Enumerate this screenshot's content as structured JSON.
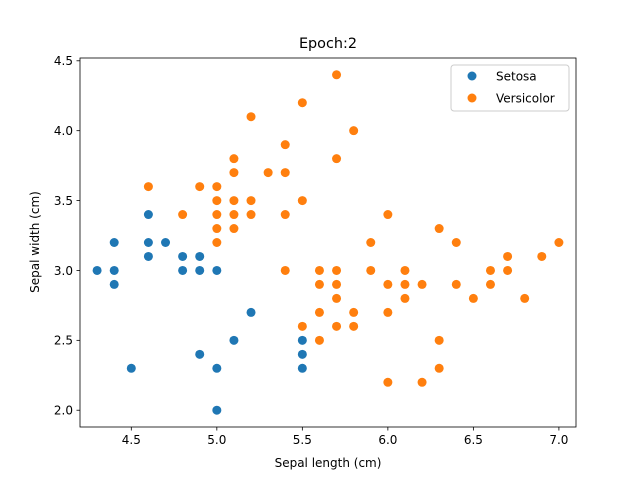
{
  "chart_data": {
    "type": "scatter",
    "title": "Epoch:2",
    "xlabel": "Sepal length (cm)",
    "ylabel": "Sepal width (cm)",
    "xlim": [
      4.2,
      7.1
    ],
    "ylim": [
      1.88,
      4.52
    ],
    "xticks": [
      4.5,
      5.0,
      5.5,
      6.0,
      6.5,
      7.0
    ],
    "xtick_labels": [
      "4.5",
      "5.0",
      "5.5",
      "6.0",
      "6.5",
      "7.0"
    ],
    "yticks": [
      2.0,
      2.5,
      3.0,
      3.5,
      4.0,
      4.5
    ],
    "ytick_labels": [
      "2.0",
      "2.5",
      "3.0",
      "3.5",
      "4.0",
      "4.5"
    ],
    "grid": false,
    "legend_position": "upper right",
    "series": [
      {
        "name": "Setosa",
        "color": "#1f77b4",
        "points": [
          [
            4.3,
            3.0
          ],
          [
            4.4,
            3.2
          ],
          [
            4.4,
            3.0
          ],
          [
            4.4,
            2.9
          ],
          [
            4.5,
            2.3
          ],
          [
            4.6,
            3.4
          ],
          [
            4.6,
            3.2
          ],
          [
            4.6,
            3.1
          ],
          [
            4.7,
            3.2
          ],
          [
            4.8,
            3.1
          ],
          [
            4.8,
            3.0
          ],
          [
            4.9,
            3.1
          ],
          [
            4.9,
            3.0
          ],
          [
            4.9,
            2.4
          ],
          [
            5.0,
            3.0
          ],
          [
            5.0,
            2.3
          ],
          [
            5.0,
            2.0
          ],
          [
            5.1,
            2.5
          ],
          [
            5.2,
            2.7
          ],
          [
            5.5,
            2.5
          ],
          [
            5.5,
            2.4
          ],
          [
            5.5,
            2.3
          ]
        ]
      },
      {
        "name": "Versicolor",
        "color": "#ff7f0e",
        "points": [
          [
            4.6,
            3.6
          ],
          [
            4.8,
            3.4
          ],
          [
            4.9,
            3.6
          ],
          [
            5.0,
            3.6
          ],
          [
            5.0,
            3.5
          ],
          [
            5.0,
            3.4
          ],
          [
            5.0,
            3.3
          ],
          [
            5.0,
            3.2
          ],
          [
            5.1,
            3.8
          ],
          [
            5.1,
            3.7
          ],
          [
            5.1,
            3.5
          ],
          [
            5.1,
            3.4
          ],
          [
            5.1,
            3.3
          ],
          [
            5.2,
            4.1
          ],
          [
            5.2,
            3.5
          ],
          [
            5.2,
            3.4
          ],
          [
            5.3,
            3.7
          ],
          [
            5.4,
            3.9
          ],
          [
            5.4,
            3.7
          ],
          [
            5.4,
            3.4
          ],
          [
            5.4,
            3.0
          ],
          [
            5.5,
            4.2
          ],
          [
            5.5,
            3.5
          ],
          [
            5.5,
            2.6
          ],
          [
            5.6,
            3.0
          ],
          [
            5.6,
            2.9
          ],
          [
            5.6,
            2.7
          ],
          [
            5.6,
            2.5
          ],
          [
            5.7,
            4.4
          ],
          [
            5.7,
            3.8
          ],
          [
            5.7,
            3.0
          ],
          [
            5.7,
            2.9
          ],
          [
            5.7,
            2.8
          ],
          [
            5.7,
            2.6
          ],
          [
            5.8,
            4.0
          ],
          [
            5.8,
            2.7
          ],
          [
            5.8,
            2.6
          ],
          [
            5.9,
            3.2
          ],
          [
            5.9,
            3.0
          ],
          [
            6.0,
            3.4
          ],
          [
            6.0,
            2.9
          ],
          [
            6.0,
            2.7
          ],
          [
            6.0,
            2.2
          ],
          [
            6.1,
            3.0
          ],
          [
            6.1,
            2.9
          ],
          [
            6.1,
            2.8
          ],
          [
            6.2,
            2.9
          ],
          [
            6.2,
            2.2
          ],
          [
            6.3,
            3.3
          ],
          [
            6.3,
            2.5
          ],
          [
            6.3,
            2.3
          ],
          [
            6.4,
            3.2
          ],
          [
            6.4,
            2.9
          ],
          [
            6.5,
            2.8
          ],
          [
            6.6,
            3.0
          ],
          [
            6.6,
            2.9
          ],
          [
            6.7,
            3.1
          ],
          [
            6.7,
            3.0
          ],
          [
            6.8,
            2.8
          ],
          [
            6.9,
            3.1
          ],
          [
            7.0,
            3.2
          ]
        ]
      }
    ]
  }
}
